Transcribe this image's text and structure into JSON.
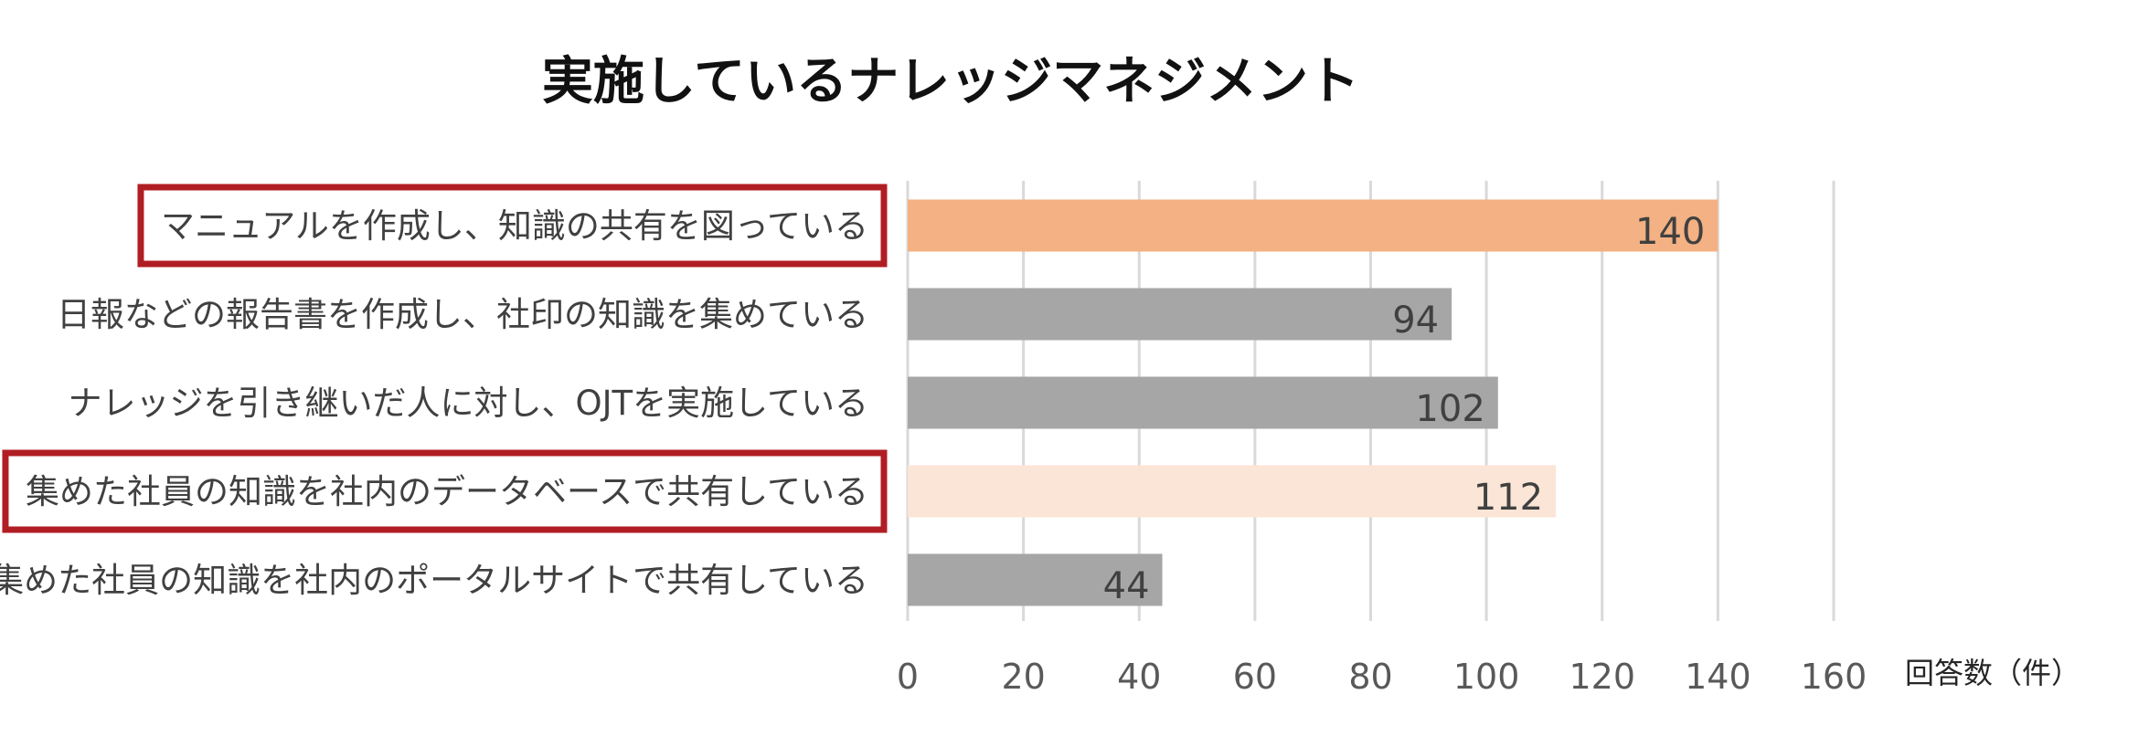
{
  "chart_data": {
    "type": "bar",
    "orientation": "horizontal",
    "title": "実施しているナレッジマネジメント",
    "xlabel": "回答数（件）",
    "ylabel": "",
    "categories": [
      "マニュアルを作成し、知識の共有を図っている",
      "日報などの報告書を作成し、社印の知識を集めている",
      "ナレッジを引き継いだ人に対し、OJTを実施している",
      "集めた社員の知識を社内のデータベースで共有している",
      "集めた社員の知識を社内のポータルサイトで共有している"
    ],
    "values": [
      140,
      94,
      102,
      112,
      44
    ],
    "bar_colors": [
      "#f4b183",
      "#a6a6a6",
      "#a6a6a6",
      "#fbe5d6",
      "#a6a6a6"
    ],
    "highlighted": [
      true,
      false,
      false,
      true,
      false
    ],
    "highlight_color": "#b01e23",
    "xlim": [
      0,
      160
    ],
    "xticks": [
      0,
      20,
      40,
      60,
      80,
      100,
      120,
      140,
      160
    ],
    "grid": true,
    "legend": "none",
    "data_labels": true
  }
}
